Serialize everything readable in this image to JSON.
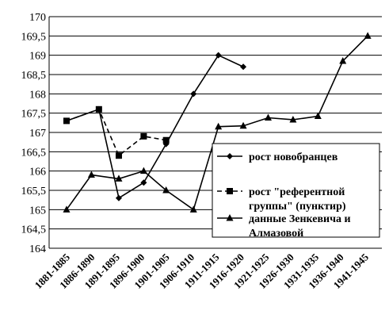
{
  "chart_data": {
    "type": "line",
    "categories": [
      "1881-1885",
      "1886-1890",
      "1891-1895",
      "1896-1900",
      "1901-1905",
      "1906-1910",
      "1911-1915",
      "1916-1920",
      "1921-1925",
      "1926-1930",
      "1931-1935",
      "1936-1940",
      "1941-1945"
    ],
    "ylim": [
      164,
      170
    ],
    "ytick_step": 0.5,
    "ytick_labels": [
      "164",
      "164,5",
      "165",
      "165,5",
      "166",
      "166,5",
      "167",
      "167,5",
      "168",
      "168,5",
      "169",
      "169,5",
      "170"
    ],
    "grid": "horizontal",
    "legend_position": "right",
    "series": [
      {
        "name": "рост новобранцев",
        "marker": "diamond",
        "dash": "solid",
        "x": [
          1881,
          1887.5,
          1891.5,
          1896.5,
          1901,
          1906.5,
          1911.5,
          1916.5
        ],
        "y": [
          167.3,
          167.6,
          165.3,
          165.7,
          166.7,
          168.0,
          169.0,
          168.7
        ]
      },
      {
        "name": "рост \"референтной группы\" (пунктир)",
        "marker": "square",
        "dash": "dashed",
        "x": [
          1881,
          1887.5,
          1891.5,
          1896.5,
          1901
        ],
        "y": [
          167.3,
          167.6,
          166.4,
          166.9,
          166.8
        ]
      },
      {
        "name": "данные Зенкевича и Алмазовой",
        "marker": "triangle",
        "dash": "solid",
        "x": [
          1881,
          1886,
          1891.5,
          1896.5,
          1901,
          1906.5,
          1911.5,
          1916.5,
          1921.5,
          1926.5,
          1931.5,
          1936.5,
          1941.5
        ],
        "y": [
          165.0,
          165.9,
          165.8,
          166.0,
          165.5,
          165.0,
          167.15,
          167.17,
          167.38,
          167.33,
          167.42,
          168.85,
          169.5
        ]
      }
    ],
    "legend": [
      {
        "label_lines": [
          "рост новобранцев"
        ]
      },
      {
        "label_lines": [
          "рост \"референтной",
          "группы\" (пунктир)"
        ]
      },
      {
        "label_lines": [
          "данные Зенкевича и",
          "Алмазовой"
        ]
      }
    ]
  }
}
